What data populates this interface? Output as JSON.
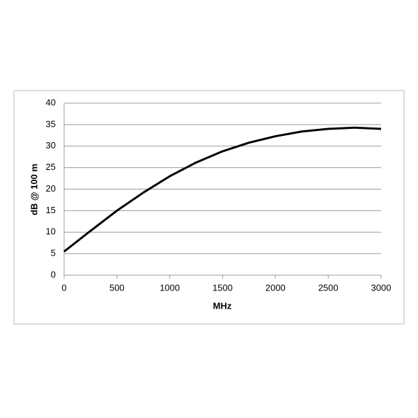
{
  "chart_data": {
    "type": "line",
    "x_label": "MHz",
    "y_label": "dB @ 100 m",
    "x": [
      0,
      250,
      500,
      750,
      1000,
      1250,
      1500,
      1750,
      2000,
      2250,
      2500,
      2750,
      3000
    ],
    "series": [
      {
        "color": "#000000",
        "values": [
          5.5,
          10.3,
          15,
          19.2,
          23,
          26.2,
          28.8,
          30.8,
          32.3,
          33.4,
          34.0,
          34.3,
          34.0
        ]
      }
    ],
    "xlim": [
      0,
      3000
    ],
    "xticks": [
      0,
      500,
      1000,
      1500,
      2000,
      2500,
      3000
    ],
    "ylim": [
      0,
      40
    ],
    "yticks": [
      0,
      5,
      10,
      15,
      20,
      25,
      30,
      35,
      40
    ],
    "grid": true
  }
}
